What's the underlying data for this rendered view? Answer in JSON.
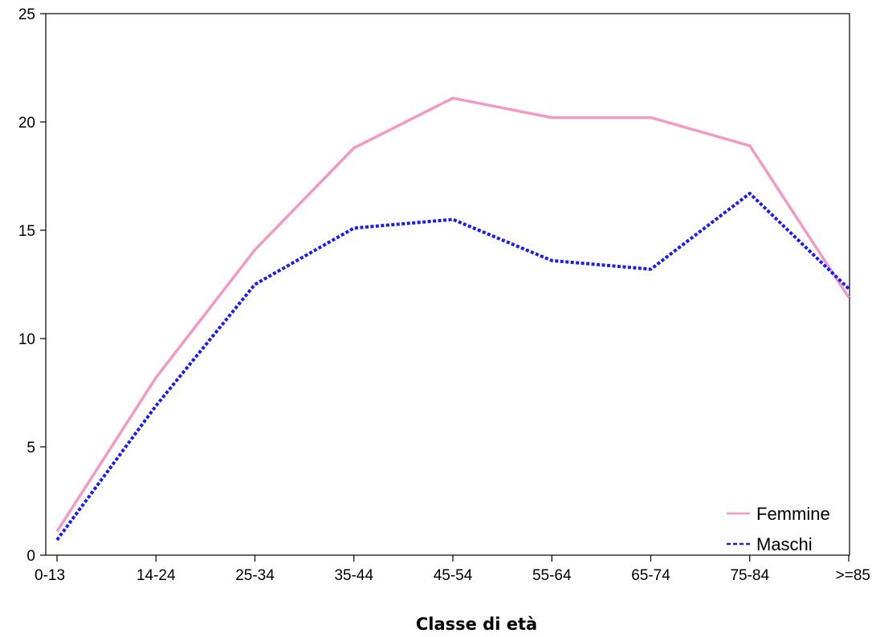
{
  "chart_data": {
    "type": "line",
    "title": "",
    "xlabel": "Classe di età",
    "ylabel": "",
    "categories": [
      "0-13",
      "14-24",
      "25-34",
      "35-44",
      "45-54",
      "55-64",
      "65-74",
      "75-84",
      ">=85"
    ],
    "ylim": [
      0,
      25
    ],
    "yticks": [
      0,
      5,
      10,
      15,
      20,
      25
    ],
    "grid": false,
    "legend_position": "bottom-right",
    "series": [
      {
        "name": "Femmine",
        "color": "#f29ac4",
        "style": "solid",
        "values": [
          1.1,
          8.2,
          14.1,
          18.8,
          21.1,
          20.2,
          20.2,
          18.9,
          11.9
        ]
      },
      {
        "name": "Maschi",
        "color": "#1a1aff",
        "style": "dotted",
        "values": [
          0.7,
          6.9,
          12.5,
          15.1,
          15.5,
          13.6,
          13.2,
          16.7,
          12.3
        ]
      }
    ]
  }
}
